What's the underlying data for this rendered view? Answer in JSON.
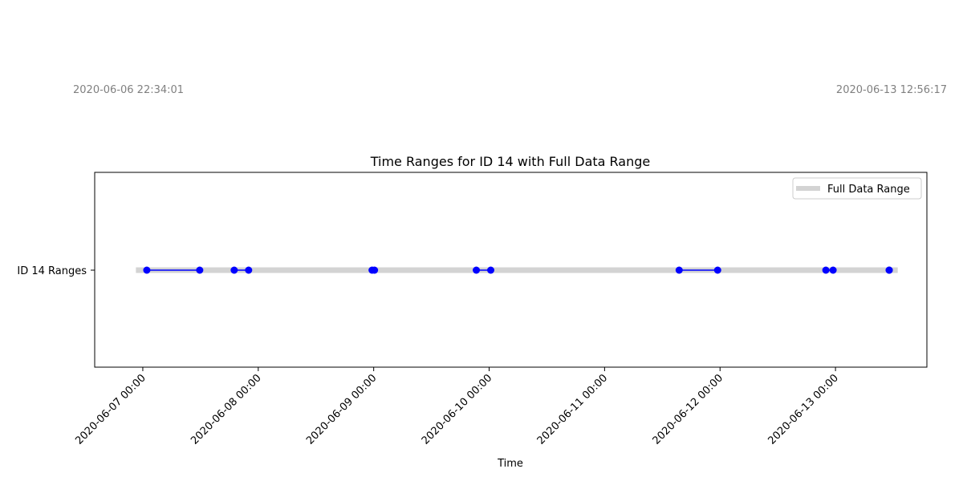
{
  "chart_data": {
    "type": "line",
    "title": "Time Ranges for ID 14 with Full Data Range",
    "xlabel": "Time",
    "ylabel": "",
    "y_category": "ID 14 Ranges",
    "xlim": [
      "2020-06-06 14:00",
      "2020-06-13 19:00"
    ],
    "x_ticks": [
      "2020-06-07 00:00",
      "2020-06-08 00:00",
      "2020-06-09 00:00",
      "2020-06-10 00:00",
      "2020-06-11 00:00",
      "2020-06-12 00:00",
      "2020-06-13 00:00"
    ],
    "full_range": {
      "name": "Full Data Range",
      "start": "2020-06-06 22:34:01",
      "end": "2020-06-13 12:56:17",
      "color": "#d3d3d3"
    },
    "full_range_labels": {
      "start": "2020-06-06 22:34:01",
      "end": "2020-06-13 12:56:17"
    },
    "ranges": [
      {
        "start": "2020-06-07 00:50",
        "end": "2020-06-07 11:50"
      },
      {
        "start": "2020-06-07 19:00",
        "end": "2020-06-07 22:00"
      },
      {
        "start": "2020-06-08 23:40",
        "end": "2020-06-09 00:10"
      },
      {
        "start": "2020-06-09 21:20",
        "end": "2020-06-10 00:20"
      },
      {
        "start": "2020-06-11 15:30",
        "end": "2020-06-11 23:30"
      },
      {
        "start": "2020-06-12 22:00",
        "end": "2020-06-12 23:30"
      },
      {
        "start": "2020-06-13 11:10",
        "end": "2020-06-13 11:10"
      }
    ],
    "series_color": "#0000ff",
    "grid": false,
    "legend_position": "top-right"
  }
}
